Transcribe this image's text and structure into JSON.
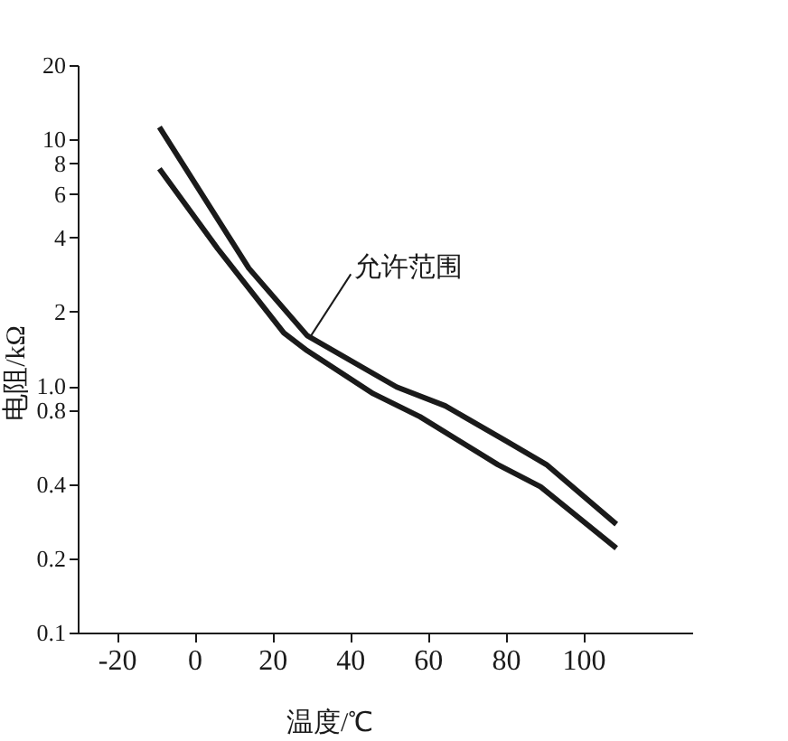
{
  "chart_data": {
    "type": "line",
    "xlabel": "温度/℃",
    "ylabel": "电阻/kΩ",
    "xlim": [
      -30,
      128
    ],
    "xticks": [
      -20,
      0,
      20,
      40,
      60,
      80,
      100
    ],
    "ylim": [
      0.1,
      20
    ],
    "yticks": [
      0.1,
      0.2,
      0.4,
      0.8,
      {
        "value": 1,
        "label": "1.0"
      },
      2,
      4,
      6,
      8,
      10,
      20
    ],
    "series": [
      {
        "color": "#1a1a1a",
        "x": [
          -9,
          14,
          29,
          52,
          64.5,
          80,
          90.5,
          108.5
        ],
        "values": [
          11.2,
          3.0,
          1.6,
          0.99,
          0.83,
          0.6,
          0.48,
          0.275
        ]
      },
      {
        "color": "#1a1a1a",
        "x": [
          -9,
          6,
          23,
          29,
          46,
          58,
          78,
          89,
          108.5
        ],
        "values": [
          7.6,
          3.6,
          1.64,
          1.39,
          0.93,
          0.75,
          0.48,
          0.39,
          0.22
        ]
      }
    ],
    "annotations": [
      {
        "text": "允许范围",
        "x": 30,
        "y": 1.6
      }
    ],
    "log": true,
    "grid": false,
    "marker": "none",
    "line_style": "solid"
  }
}
